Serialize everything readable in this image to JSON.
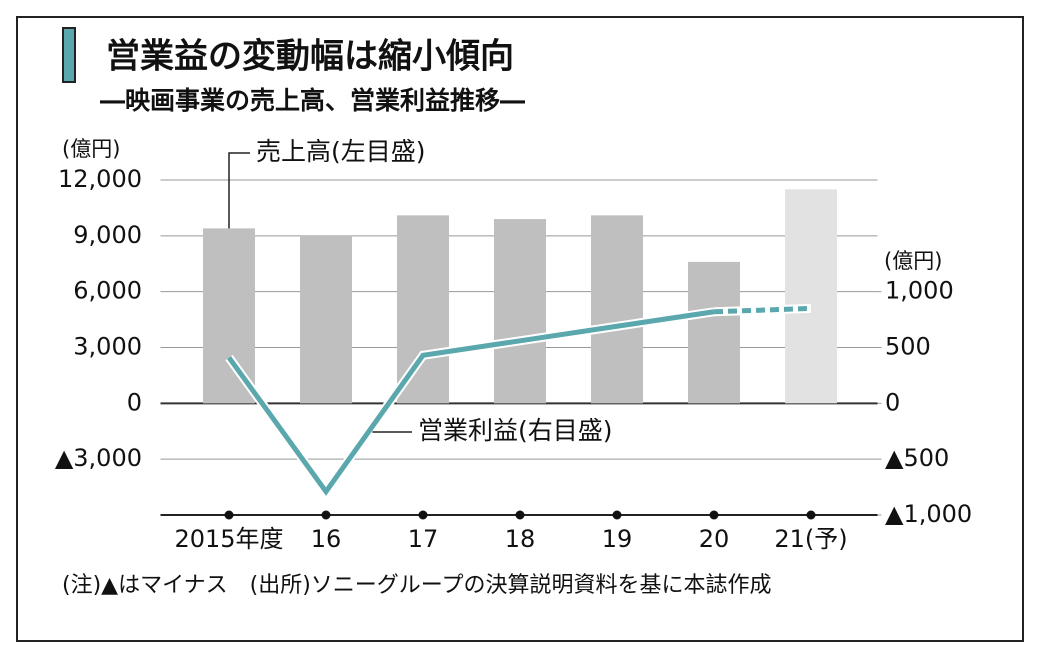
{
  "chart_data": {
    "type": "bar",
    "title": "営業益の変動幅は縮小傾向",
    "subtitle": "―映画事業の売上高、営業利益推移―",
    "y_unit": "(億円)",
    "y2_unit": "(億円)",
    "note": "(注)▲はマイナス　(出所)ソニーグループの決算説明資料を基に本誌作成",
    "categories": [
      "2015年度",
      "16",
      "17",
      "18",
      "19",
      "20",
      "21(予)"
    ],
    "series": [
      {
        "name": "売上高(左目盛)",
        "type": "bar",
        "axis": "y",
        "colors": [
          "#bfbfbf",
          "#bfbfbf",
          "#bfbfbf",
          "#bfbfbf",
          "#bfbfbf",
          "#bfbfbf",
          "#e2e2e2"
        ],
        "values": [
          9400,
          9000,
          10100,
          9900,
          10100,
          7600,
          11500
        ]
      },
      {
        "name": "営業利益(右目盛)",
        "type": "line",
        "axis": "y2",
        "color": "#5aa8ad",
        "forecast_from": 5,
        "values": [
          410,
          -790,
          430,
          560,
          690,
          820,
          850
        ]
      }
    ],
    "ylim": [
      -6000,
      12000
    ],
    "yticks": [
      {
        "value": -3000,
        "label": "▲3,000"
      },
      0,
      {
        "value": 3000,
        "label": "3,000"
      },
      {
        "value": 6000,
        "label": "6,000"
      },
      {
        "value": 9000,
        "label": "9,000"
      },
      {
        "value": 12000,
        "label": "12,000"
      }
    ],
    "y2lim": [
      -1000,
      2000
    ],
    "y2ticks": [
      {
        "value": -1000,
        "label": "▲1,000"
      },
      {
        "value": -500,
        "label": "▲500"
      },
      0,
      500,
      {
        "value": 1000,
        "label": "1,000"
      }
    ],
    "grid": true
  }
}
